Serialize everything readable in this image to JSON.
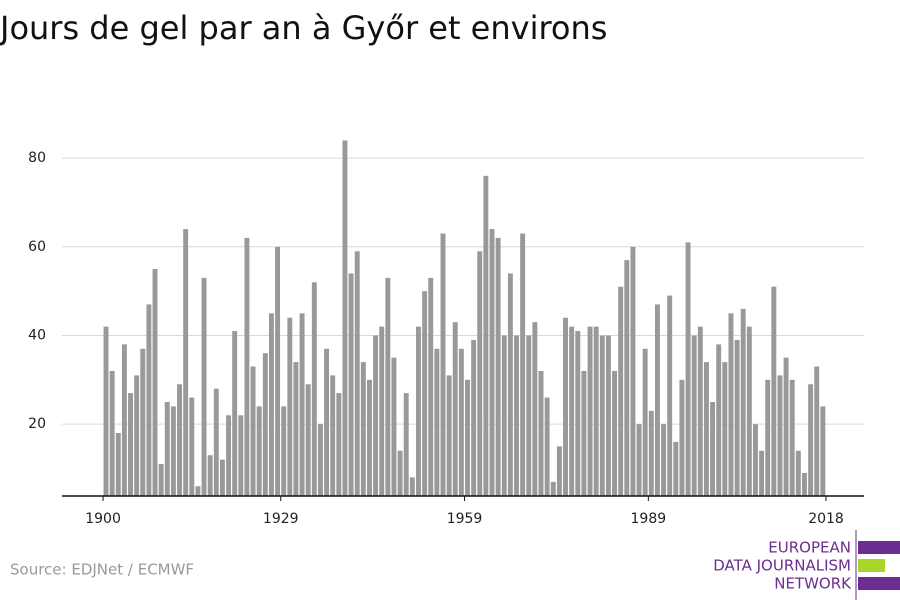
{
  "chart_data": {
    "type": "bar",
    "title": "Jours de gel par an à Győr et environs",
    "source": "Source: EDJNet / ECMWF",
    "logo": [
      "EUROPEAN",
      "DATA JOURNALISM",
      "NETWORK"
    ],
    "color": "#999999",
    "x": [
      1900,
      1901,
      1902,
      1903,
      1904,
      1905,
      1906,
      1907,
      1908,
      1909,
      1910,
      1911,
      1912,
      1913,
      1914,
      1915,
      1916,
      1917,
      1918,
      1919,
      1920,
      1921,
      1922,
      1923,
      1924,
      1925,
      1926,
      1927,
      1928,
      1929,
      1930,
      1931,
      1932,
      1933,
      1934,
      1935,
      1936,
      1937,
      1938,
      1939,
      1940,
      1941,
      1942,
      1943,
      1944,
      1945,
      1946,
      1947,
      1948,
      1949,
      1950,
      1951,
      1952,
      1953,
      1954,
      1955,
      1956,
      1957,
      1958,
      1959,
      1960,
      1961,
      1962,
      1963,
      1964,
      1965,
      1966,
      1967,
      1968,
      1969,
      1970,
      1971,
      1972,
      1973,
      1974,
      1975,
      1976,
      1977,
      1978,
      1979,
      1980,
      1981,
      1982,
      1983,
      1984,
      1985,
      1986,
      1987,
      1988,
      1989,
      1990,
      1991,
      1992,
      1993,
      1994,
      1995,
      1996,
      1997,
      1998,
      1999,
      2000,
      2001,
      2002,
      2003,
      2004,
      2005,
      2006,
      2007,
      2008,
      2009,
      2010,
      2011,
      2012,
      2013,
      2014,
      2015,
      2016,
      2017
    ],
    "values": [
      42,
      32,
      18,
      38,
      27,
      31,
      37,
      47,
      55,
      11,
      25,
      24,
      29,
      64,
      26,
      6,
      53,
      13,
      28,
      12,
      22,
      41,
      22,
      62,
      33,
      24,
      36,
      45,
      60,
      24,
      44,
      34,
      45,
      29,
      52,
      20,
      37,
      31,
      27,
      84,
      54,
      59,
      34,
      30,
      40,
      42,
      53,
      35,
      14,
      27,
      8,
      42,
      50,
      53,
      37,
      63,
      31,
      43,
      37,
      30,
      39,
      59,
      76,
      64,
      62,
      40,
      54,
      40,
      63,
      40,
      43,
      32,
      26,
      7,
      15,
      44,
      42,
      41,
      32,
      42,
      42,
      40,
      40,
      32,
      51,
      57,
      60,
      20,
      37,
      23,
      47,
      20,
      49,
      16,
      30,
      61,
      40,
      42,
      34,
      25,
      38,
      34,
      45,
      39,
      46,
      42,
      20,
      14,
      30,
      51,
      31,
      35,
      30,
      14,
      9,
      29,
      33,
      24
    ],
    "xlim": [
      1893.3,
      2024.2
    ],
    "xticks": [
      1900,
      1929,
      1959,
      1989,
      2018
    ],
    "ylim": [
      3.8,
      88.6
    ],
    "yticks": [
      20,
      40,
      60,
      80
    ],
    "grid": true
  }
}
